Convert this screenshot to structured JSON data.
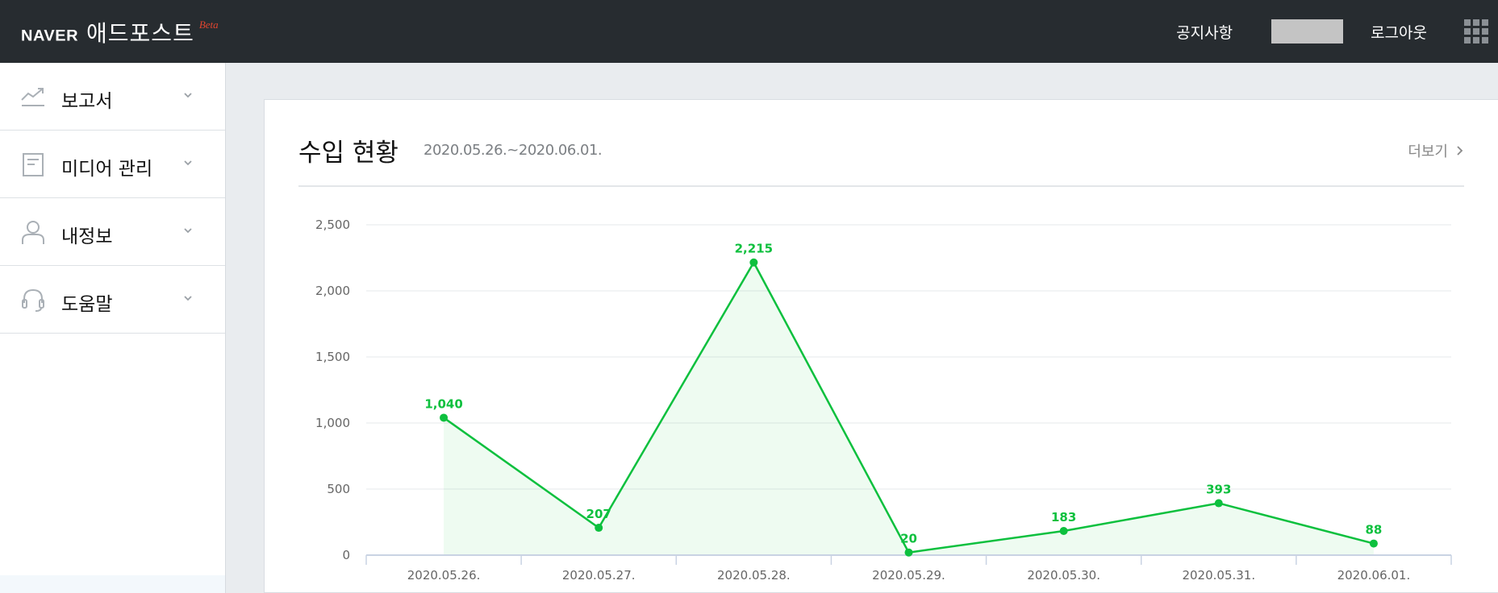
{
  "header": {
    "logo_brand": "NAVER",
    "logo_title": "애드포스트",
    "logo_badge": "Beta",
    "notice_label": "공지사항",
    "logout_label": "로그아웃",
    "apps_icon": "grid-apps-icon"
  },
  "sidebar": {
    "items": [
      {
        "label": "보고서",
        "icon": "report-chart-icon"
      },
      {
        "label": "미디어 관리",
        "icon": "document-icon"
      },
      {
        "label": "내정보",
        "icon": "person-icon"
      },
      {
        "label": "도움말",
        "icon": "headset-icon"
      }
    ]
  },
  "card": {
    "title": "수입 현황",
    "date_range": "2020.05.26.~2020.06.01.",
    "more_label": "더보기"
  },
  "colors": {
    "accent_green": "#0dc03e",
    "header_bg": "#272c30"
  },
  "chart_data": {
    "type": "area",
    "categories": [
      "2020.05.26.",
      "2020.05.27.",
      "2020.05.28.",
      "2020.05.29.",
      "2020.05.30.",
      "2020.05.31.",
      "2020.06.01."
    ],
    "values": [
      1040,
      207,
      2215,
      20,
      183,
      393,
      88
    ],
    "data_labels": [
      "1,040",
      "207",
      "2,215",
      "20",
      "183",
      "393",
      "88"
    ],
    "y_ticks": [
      0,
      500,
      1000,
      1500,
      2000,
      2500
    ],
    "y_tick_labels": [
      "0",
      "500",
      "1,000",
      "1,500",
      "2,000",
      "2,500"
    ],
    "ylim": [
      0,
      2500
    ],
    "grid": true,
    "title": "",
    "xlabel": "",
    "ylabel": ""
  }
}
